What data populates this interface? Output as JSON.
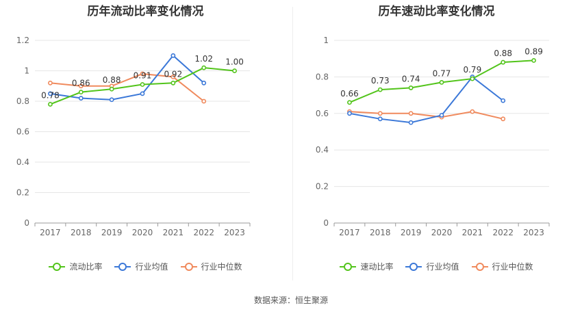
{
  "source": "数据来源：恒生聚源",
  "chart_data": [
    {
      "type": "line",
      "title": "历年流动比率变化情况",
      "categories": [
        "2017",
        "2018",
        "2019",
        "2020",
        "2021",
        "2022",
        "2023"
      ],
      "ylim": [
        0,
        1.2
      ],
      "yticks": [
        "0",
        "0.2",
        "0.4",
        "0.6",
        "0.8",
        "1",
        "1.2"
      ],
      "grid": true,
      "legend_position": "bottom",
      "series": [
        {
          "name": "流动比率",
          "color": "#52c41a",
          "values": [
            0.78,
            0.86,
            0.88,
            0.91,
            0.92,
            1.02,
            1.0
          ],
          "labels": [
            "0.78",
            "0.86",
            "0.88",
            "0.91",
            "0.92",
            "1.02",
            "1.00"
          ]
        },
        {
          "name": "行业均值",
          "color": "#3b78d8",
          "values": [
            0.85,
            0.82,
            0.81,
            0.85,
            1.1,
            0.92,
            null
          ]
        },
        {
          "name": "行业中位数",
          "color": "#f08a5d",
          "values": [
            0.92,
            0.9,
            0.9,
            0.98,
            0.96,
            0.8,
            null
          ]
        }
      ]
    },
    {
      "type": "line",
      "title": "历年速动比率变化情况",
      "categories": [
        "2017",
        "2018",
        "2019",
        "2020",
        "2021",
        "2022",
        "2023"
      ],
      "ylim": [
        0,
        1
      ],
      "yticks": [
        "0",
        "0.2",
        "0.4",
        "0.6",
        "0.8",
        "1"
      ],
      "grid": true,
      "legend_position": "bottom",
      "series": [
        {
          "name": "速动比率",
          "color": "#52c41a",
          "values": [
            0.66,
            0.73,
            0.74,
            0.77,
            0.79,
            0.88,
            0.89
          ],
          "labels": [
            "0.66",
            "0.73",
            "0.74",
            "0.77",
            "0.79",
            "0.88",
            "0.89"
          ]
        },
        {
          "name": "行业均值",
          "color": "#3b78d8",
          "values": [
            0.6,
            0.57,
            0.55,
            0.59,
            0.8,
            0.67,
            null
          ]
        },
        {
          "name": "行业中位数",
          "color": "#f08a5d",
          "values": [
            0.61,
            0.6,
            0.6,
            0.58,
            0.61,
            0.57,
            null
          ]
        }
      ]
    }
  ]
}
